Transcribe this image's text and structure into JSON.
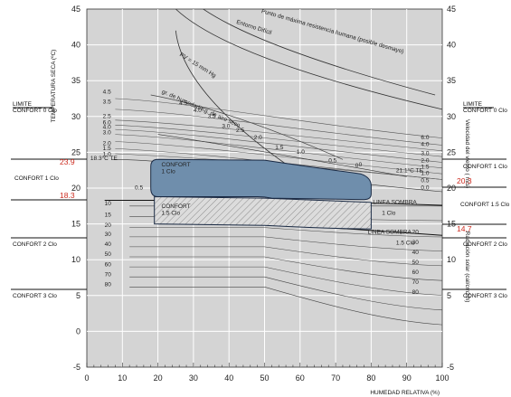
{
  "chart_data": {
    "type": "line",
    "title": "",
    "xlabel": "HUMEDAD RELATIVA (%)",
    "ylabel": "TEMPERATURA SECA (ºC)",
    "xlim": [
      0,
      100
    ],
    "ylim": [
      -5,
      45
    ],
    "x_ticks": [
      0,
      10,
      20,
      30,
      40,
      50,
      60,
      70,
      80,
      90,
      100
    ],
    "y_ticks_left": [
      -5,
      0,
      5,
      10,
      15,
      20,
      25,
      30,
      35,
      40,
      45
    ],
    "y_ticks_right": [
      -5,
      5,
      10,
      15,
      20,
      25,
      30,
      35,
      40,
      45
    ],
    "grid": true,
    "right_axis_labels": [
      "Velocidad del viento ( m/s)",
      "Radiación solar (cal/cm2/h)"
    ],
    "wind_left": [
      "4.5",
      "3.5",
      "2.5",
      "6.0",
      "4.0",
      "3.0",
      "2.0",
      "1.5",
      "1.0"
    ],
    "wind_right": [
      "6.0",
      "4.0",
      "3.0",
      "2.0",
      "1.5",
      "1.0",
      "0.5",
      "0.0"
    ],
    "wind_mid": [
      "4.5",
      "4.0",
      "3.5",
      "3.0",
      "2.5",
      "2.0",
      "1.5",
      "1.0",
      "0.5",
      "0"
    ],
    "radiation_left": [
      "10",
      "15",
      "20",
      "30",
      "40",
      "50",
      "60",
      "70",
      "80"
    ],
    "radiation_right": [
      "20",
      "30",
      "40",
      "50",
      "60",
      "70",
      "80"
    ],
    "curve_labels": {
      "max_resistance": "Punto de máxima resistencia humana (posible desmayo)",
      "difficult": "Entorno Difícil",
      "pv": "PV = 15 mm Hg",
      "humidity": "gr. de humedad/Kg. de aire seco",
      "te_low": "18.3°C TE",
      "te_high": "21.1°C TE",
      "sombra1": "LINEA SOMBRA",
      "clo1": "1 Clo",
      "sombra2": "LINEA SOMBRA",
      "clo15": "1.5 Clo",
      "zone1": "CONFORT\n1 Clo",
      "zone15": "CONFORT\n1.5 Clo",
      "half": "0.5",
      "zero": "0"
    },
    "left_annotations": [
      {
        "label": "LIMITE",
        "sub": "CONFORT 0 Clo"
      },
      {
        "label": "CONFORT 1 Clo"
      },
      {
        "label": "CONFORT 2 Clo"
      },
      {
        "label": "CONFORT 3 Clo"
      }
    ],
    "left_values": [
      "23.9",
      "18.3"
    ],
    "right_annotations": [
      {
        "label": "LIMITE",
        "sub": "CONFORT 0 Clo"
      },
      {
        "label": "CONFORT 1 Clo"
      },
      {
        "label": "CONFORT 1.5 Clo"
      },
      {
        "label": "CONFORT 2 Clo"
      },
      {
        "label": "CONFORT 3 Clo"
      }
    ],
    "right_values": [
      "20.3",
      "14.7"
    ],
    "colors": {
      "zone_fill": "#6f8eac",
      "zone_stroke": "#1a2a44",
      "plot_bg": "#d4d4d4",
      "red": "#cc2a1e"
    }
  }
}
